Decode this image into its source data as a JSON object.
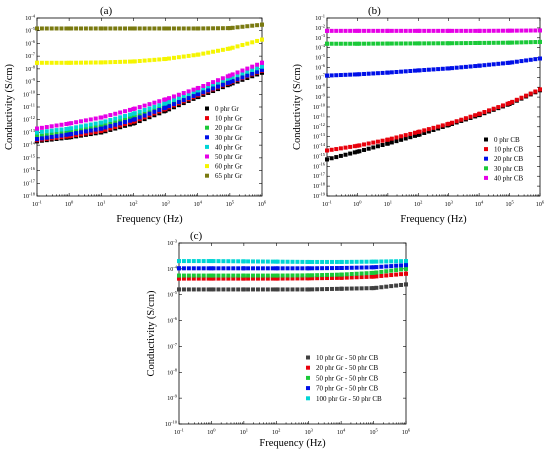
{
  "chart_data": [
    {
      "type": "scatter",
      "panel_label": "(a)",
      "xlabel": "Frequency (Hz)",
      "ylabel": "Conductivity (S/cm)",
      "x_scale": "log",
      "y_scale": "log",
      "xlim": [
        0.1,
        1000000
      ],
      "ylim": [
        1e-18,
        0.0001
      ],
      "x_ticks": [
        "10-1",
        "100",
        "101",
        "102",
        "103",
        "104",
        "105",
        "106"
      ],
      "y_ticks": [
        "10-18",
        "10-17",
        "10-16",
        "10-15",
        "10-14",
        "10-13",
        "10-12",
        "10-11",
        "10-10",
        "10-9",
        "10-8",
        "10-7",
        "10-6",
        "10-5",
        "10-4"
      ],
      "legend_position": "center-right",
      "grid": false,
      "series": [
        {
          "name": "0 phr Gr",
          "color": "#000000",
          "x": [
            0.1,
            1,
            10,
            100,
            1000,
            10000,
            100000,
            1000000
          ],
          "y": [
            2e-14,
            4e-14,
            1e-13,
            5e-13,
            5e-12,
            6e-11,
            6e-10,
            5e-09
          ]
        },
        {
          "name": "10 phr Gr",
          "color": "#e8000b",
          "x": [
            0.1,
            1,
            10,
            100,
            1000,
            10000,
            100000,
            1000000
          ],
          "y": [
            2.5e-14,
            5e-14,
            1.3e-13,
            7e-13,
            7e-12,
            8e-11,
            8e-10,
            7e-09
          ]
        },
        {
          "name": "20 phr Gr",
          "color": "#1ac938",
          "x": [
            0.1,
            1,
            10,
            100,
            1000,
            10000,
            100000,
            1000000
          ],
          "y": [
            5e-14,
            1e-13,
            3e-13,
            1.5e-12,
            1.2e-11,
            1.2e-10,
            1.2e-09,
            1e-08
          ]
        },
        {
          "name": "30 phr Gr",
          "color": "#0010e8",
          "x": [
            0.1,
            1,
            10,
            100,
            1000,
            10000,
            100000,
            1000000
          ],
          "y": [
            3e-14,
            7e-14,
            2e-13,
            1e-12,
            9e-12,
            1e-10,
            9e-10,
            8e-09
          ]
        },
        {
          "name": "40 phr Gr",
          "color": "#00d5d5",
          "x": [
            0.1,
            1,
            10,
            100,
            1000,
            10000,
            100000,
            1000000
          ],
          "y": [
            1e-13,
            2e-13,
            6e-13,
            3e-12,
            2e-11,
            2e-10,
            2e-09,
            1.5e-08
          ]
        },
        {
          "name": "50 phr Gr",
          "color": "#e600e6",
          "x": [
            0.1,
            1,
            10,
            100,
            1000,
            10000,
            100000,
            1000000
          ],
          "y": [
            2e-13,
            5e-13,
            1.5e-12,
            7e-12,
            4e-11,
            3e-10,
            3e-09,
            3e-08
          ]
        },
        {
          "name": "60 phr Gr",
          "color": "#f5f500",
          "x": [
            0.1,
            1,
            10,
            100,
            1000,
            10000,
            100000,
            1000000
          ],
          "y": [
            3e-08,
            3e-08,
            3.2e-08,
            3.8e-08,
            6e-08,
            1.3e-07,
            4e-07,
            2e-06
          ]
        },
        {
          "name": "65 phr Gr",
          "color": "#7a7a10",
          "x": [
            0.1,
            1,
            10,
            100,
            1000,
            10000,
            100000,
            1000000
          ],
          "y": [
            1.5e-05,
            1.5e-05,
            1.5e-05,
            1.5e-05,
            1.5e-05,
            1.5e-05,
            1.6e-05,
            3e-05
          ]
        }
      ]
    },
    {
      "type": "scatter",
      "panel_label": "(b)",
      "xlabel": "Frequency (Hz)",
      "ylabel": "Conductivity (S/cm)",
      "x_scale": "log",
      "y_scale": "log",
      "xlim": [
        0.1,
        1000000
      ],
      "ylim": [
        1e-19,
        0.1
      ],
      "x_ticks": [
        "10-1",
        "100",
        "101",
        "102",
        "103",
        "104",
        "105",
        "106"
      ],
      "y_ticks": [
        "10-19",
        "10-18",
        "10-17",
        "10-16",
        "10-15",
        "10-14",
        "10-13",
        "10-12",
        "10-11",
        "10-10",
        "10-9",
        "10-8",
        "10-7",
        "10-6",
        "10-5",
        "10-4",
        "10-3",
        "10-2",
        "10-1"
      ],
      "legend_position": "bottom-right",
      "grid": false,
      "series": [
        {
          "name": "0 phr CB",
          "color": "#000000",
          "x": [
            0.1,
            1,
            10,
            100,
            1000,
            10000,
            100000,
            1000000
          ],
          "y": [
            5e-16,
            3e-15,
            2e-14,
            1.5e-13,
            1.5e-12,
            1.5e-11,
            2e-10,
            5e-09
          ]
        },
        {
          "name": "10 phr CB",
          "color": "#e8000b",
          "x": [
            0.1,
            1,
            10,
            100,
            1000,
            10000,
            100000,
            1000000
          ],
          "y": [
            4e-15,
            1.2e-14,
            5e-14,
            3e-13,
            2e-12,
            2e-11,
            2.5e-10,
            6e-09
          ]
        },
        {
          "name": "20 phr CB",
          "color": "#0010e8",
          "x": [
            0.1,
            1,
            10,
            100,
            1000,
            10000,
            100000,
            1000000
          ],
          "y": [
            1.5e-07,
            2e-07,
            3e-07,
            5e-07,
            8e-07,
            1.5e-06,
            3e-06,
            8e-06
          ]
        },
        {
          "name": "30 phr CB",
          "color": "#1ac938",
          "x": [
            0.1,
            1,
            10,
            100,
            1000,
            10000,
            100000,
            1000000
          ],
          "y": [
            0.00025,
            0.00025,
            0.00026,
            0.00027,
            0.00028,
            0.0003,
            0.00032,
            0.00038
          ]
        },
        {
          "name": "40 phr CB",
          "color": "#e600e6",
          "x": [
            0.1,
            1,
            10,
            100,
            1000,
            10000,
            100000,
            1000000
          ],
          "y": [
            0.005,
            0.005,
            0.005,
            0.005,
            0.005,
            0.005,
            0.0052,
            0.0055
          ]
        }
      ]
    },
    {
      "type": "scatter",
      "panel_label": "(c)",
      "xlabel": "Frequency (Hz)",
      "ylabel": "Conductivity (S/cm)",
      "x_scale": "log",
      "y_scale": "log",
      "xlim": [
        0.1,
        1000000
      ],
      "ylim": [
        1e-10,
        0.001
      ],
      "x_ticks": [
        "10-1",
        "100",
        "101",
        "102",
        "103",
        "104",
        "105",
        "106"
      ],
      "y_ticks": [
        "10-10",
        "10-9",
        "10-8",
        "10-7",
        "10-6",
        "10-5",
        "10-4",
        "10-3"
      ],
      "legend_position": "bottom-right",
      "grid": false,
      "series": [
        {
          "name": "10 phr Gr - 50 phr CB",
          "color": "#404040",
          "x": [
            0.1,
            1,
            10,
            100,
            1000,
            10000,
            100000,
            1000000
          ],
          "y": [
            1.6e-05,
            1.6e-05,
            1.6e-05,
            1.6e-05,
            1.6e-05,
            1.7e-05,
            1.8e-05,
            2.5e-05
          ]
        },
        {
          "name": "20 phr Gr - 50 phr CB",
          "color": "#e8000b",
          "x": [
            0.1,
            1,
            10,
            100,
            1000,
            10000,
            100000,
            1000000
          ],
          "y": [
            4.2e-05,
            4.2e-05,
            4.2e-05,
            4.2e-05,
            4.3e-05,
            4.5e-05,
            5e-05,
            6.5e-05
          ]
        },
        {
          "name": "50 phr Gr - 50 phr CB",
          "color": "#1ac938",
          "x": [
            0.1,
            1,
            10,
            100,
            1000,
            10000,
            100000,
            1000000
          ],
          "y": [
            5.5e-05,
            5.5e-05,
            5.5e-05,
            5.5e-05,
            5.6e-05,
            6e-05,
            7e-05,
            0.0001
          ]
        },
        {
          "name": "70 phr Gr - 50 phr CB",
          "color": "#0010e8",
          "x": [
            0.1,
            1,
            10,
            100,
            1000,
            10000,
            100000,
            1000000
          ],
          "y": [
            0.000105,
            0.000105,
            0.000105,
            0.000105,
            0.000105,
            0.000108,
            0.000115,
            0.00014
          ]
        },
        {
          "name": "100 phr Gr - 50 phr CB",
          "color": "#00d5d5",
          "x": [
            0.1,
            1,
            10,
            100,
            1000,
            10000,
            100000,
            1000000
          ],
          "y": [
            0.0002,
            0.0002,
            0.000195,
            0.00019,
            0.000185,
            0.000185,
            0.00019,
            0.0002
          ]
        }
      ]
    }
  ]
}
